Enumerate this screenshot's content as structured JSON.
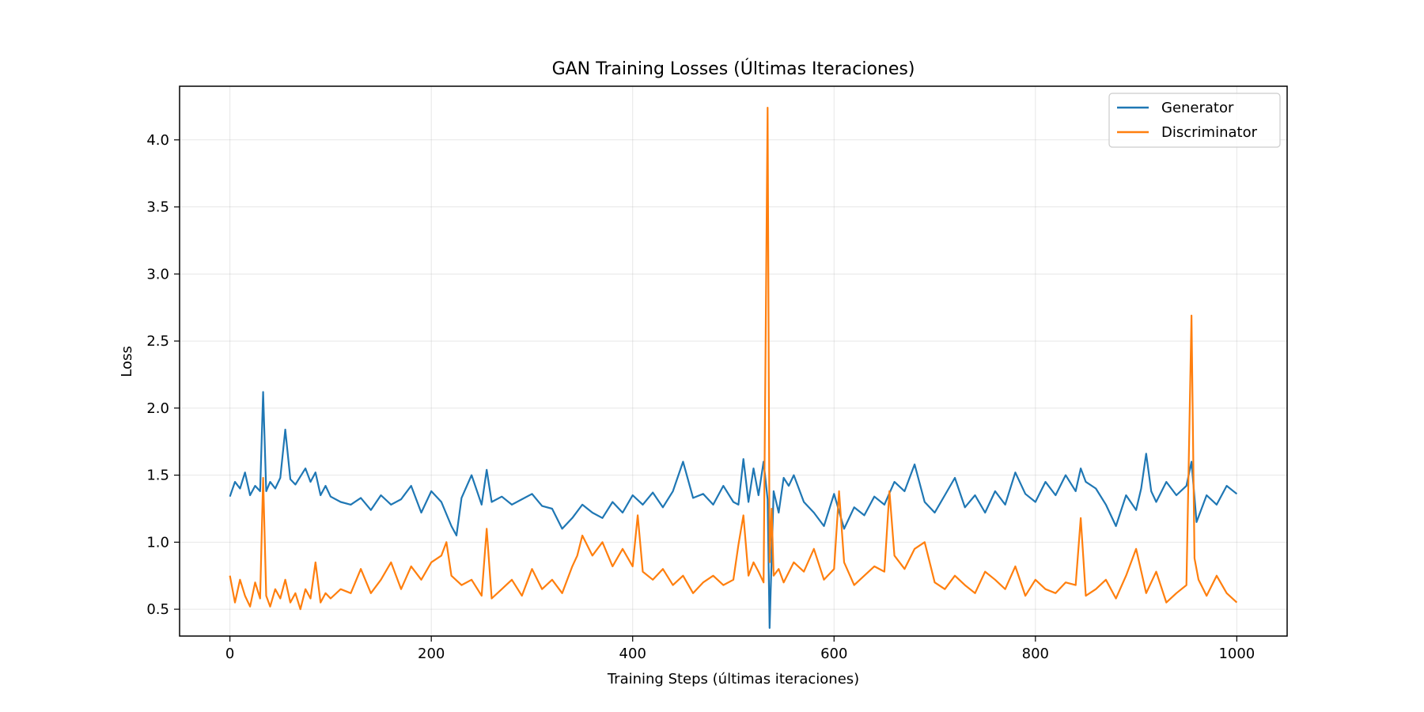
{
  "chart_data": {
    "type": "line",
    "title": "GAN Training Losses (Últimas Iteraciones)",
    "xlabel": "Training Steps (últimas iteraciones)",
    "ylabel": "Loss",
    "xlim": [
      -50,
      1050
    ],
    "ylim": [
      0.3,
      4.4
    ],
    "xticks": [
      0,
      200,
      400,
      600,
      800,
      1000
    ],
    "yticks": [
      0.5,
      1.0,
      1.5,
      2.0,
      2.5,
      3.0,
      3.5,
      4.0
    ],
    "xtick_labels": [
      "0",
      "200",
      "400",
      "600",
      "800",
      "1000"
    ],
    "ytick_labels": [
      "0.5",
      "1.0",
      "1.5",
      "2.0",
      "2.5",
      "3.0",
      "3.5",
      "4.0"
    ],
    "grid": true,
    "legend_position": "upper right",
    "series": [
      {
        "name": "Generator",
        "color": "#1f77b4",
        "x": [
          0,
          5,
          10,
          15,
          20,
          25,
          30,
          33,
          36,
          40,
          45,
          50,
          55,
          60,
          65,
          70,
          75,
          80,
          85,
          90,
          95,
          100,
          110,
          120,
          130,
          140,
          150,
          160,
          170,
          180,
          190,
          200,
          210,
          220,
          225,
          230,
          240,
          250,
          255,
          260,
          270,
          280,
          290,
          300,
          310,
          320,
          330,
          340,
          350,
          360,
          370,
          380,
          390,
          400,
          410,
          420,
          430,
          440,
          450,
          460,
          470,
          480,
          490,
          500,
          505,
          510,
          515,
          520,
          525,
          530,
          534,
          536,
          540,
          545,
          550,
          555,
          560,
          570,
          580,
          590,
          600,
          610,
          620,
          630,
          640,
          650,
          660,
          670,
          680,
          690,
          700,
          710,
          720,
          730,
          740,
          750,
          760,
          770,
          780,
          790,
          800,
          810,
          820,
          830,
          840,
          845,
          850,
          860,
          870,
          880,
          890,
          900,
          905,
          910,
          915,
          920,
          930,
          940,
          950,
          955,
          960,
          970,
          980,
          990,
          1000
        ],
        "y": [
          1.34,
          1.45,
          1.4,
          1.52,
          1.35,
          1.42,
          1.38,
          2.12,
          1.38,
          1.45,
          1.4,
          1.48,
          1.84,
          1.47,
          1.43,
          1.49,
          1.55,
          1.45,
          1.52,
          1.35,
          1.42,
          1.34,
          1.3,
          1.28,
          1.33,
          1.24,
          1.35,
          1.28,
          1.32,
          1.42,
          1.22,
          1.38,
          1.3,
          1.12,
          1.05,
          1.33,
          1.5,
          1.28,
          1.54,
          1.3,
          1.34,
          1.28,
          1.32,
          1.36,
          1.27,
          1.25,
          1.1,
          1.18,
          1.28,
          1.22,
          1.18,
          1.3,
          1.22,
          1.35,
          1.28,
          1.37,
          1.26,
          1.38,
          1.6,
          1.33,
          1.36,
          1.28,
          1.42,
          1.3,
          1.28,
          1.62,
          1.3,
          1.55,
          1.35,
          1.6,
          1.32,
          0.36,
          1.38,
          1.22,
          1.48,
          1.42,
          1.5,
          1.3,
          1.22,
          1.12,
          1.36,
          1.1,
          1.26,
          1.2,
          1.34,
          1.28,
          1.45,
          1.38,
          1.58,
          1.3,
          1.22,
          1.35,
          1.48,
          1.26,
          1.35,
          1.22,
          1.38,
          1.28,
          1.52,
          1.36,
          1.3,
          1.45,
          1.35,
          1.5,
          1.38,
          1.55,
          1.45,
          1.4,
          1.28,
          1.12,
          1.35,
          1.24,
          1.4,
          1.66,
          1.38,
          1.3,
          1.45,
          1.35,
          1.42,
          1.6,
          1.15,
          1.35,
          1.28,
          1.42,
          1.36
        ]
      },
      {
        "name": "Discriminator",
        "color": "#ff7f0e",
        "x": [
          0,
          5,
          10,
          15,
          20,
          25,
          30,
          33,
          36,
          40,
          45,
          50,
          55,
          60,
          65,
          70,
          75,
          80,
          85,
          90,
          95,
          100,
          110,
          120,
          130,
          140,
          150,
          160,
          170,
          180,
          190,
          200,
          210,
          215,
          220,
          230,
          240,
          250,
          255,
          260,
          270,
          280,
          290,
          300,
          310,
          320,
          330,
          340,
          345,
          350,
          360,
          370,
          380,
          390,
          400,
          405,
          410,
          420,
          430,
          440,
          450,
          460,
          470,
          480,
          490,
          500,
          505,
          510,
          515,
          520,
          525,
          530,
          534,
          536,
          538,
          540,
          545,
          550,
          560,
          570,
          580,
          590,
          600,
          605,
          610,
          620,
          630,
          640,
          650,
          655,
          660,
          670,
          680,
          690,
          700,
          710,
          720,
          730,
          740,
          750,
          760,
          770,
          780,
          790,
          800,
          810,
          820,
          830,
          840,
          845,
          850,
          860,
          870,
          880,
          890,
          900,
          910,
          920,
          930,
          940,
          950,
          955,
          958,
          962,
          970,
          980,
          990,
          1000
        ],
        "y": [
          0.75,
          0.55,
          0.72,
          0.6,
          0.52,
          0.7,
          0.58,
          1.48,
          0.6,
          0.52,
          0.65,
          0.58,
          0.72,
          0.55,
          0.62,
          0.5,
          0.65,
          0.58,
          0.85,
          0.55,
          0.62,
          0.58,
          0.65,
          0.62,
          0.8,
          0.62,
          0.72,
          0.85,
          0.65,
          0.82,
          0.72,
          0.85,
          0.9,
          1.0,
          0.75,
          0.68,
          0.72,
          0.6,
          1.1,
          0.58,
          0.65,
          0.72,
          0.6,
          0.8,
          0.65,
          0.72,
          0.62,
          0.82,
          0.9,
          1.05,
          0.9,
          1.0,
          0.82,
          0.95,
          0.82,
          1.2,
          0.78,
          0.72,
          0.8,
          0.68,
          0.75,
          0.62,
          0.7,
          0.75,
          0.68,
          0.72,
          0.98,
          1.2,
          0.75,
          0.85,
          0.78,
          0.7,
          4.24,
          0.85,
          1.25,
          0.75,
          0.8,
          0.7,
          0.85,
          0.78,
          0.95,
          0.72,
          0.8,
          1.38,
          0.85,
          0.68,
          0.75,
          0.82,
          0.78,
          1.38,
          0.9,
          0.8,
          0.95,
          1.0,
          0.7,
          0.65,
          0.75,
          0.68,
          0.62,
          0.78,
          0.72,
          0.65,
          0.82,
          0.6,
          0.72,
          0.65,
          0.62,
          0.7,
          0.68,
          1.18,
          0.6,
          0.65,
          0.72,
          0.58,
          0.75,
          0.95,
          0.62,
          0.78,
          0.55,
          0.62,
          0.68,
          2.69,
          0.88,
          0.72,
          0.6,
          0.75,
          0.62,
          0.55
        ]
      }
    ]
  }
}
